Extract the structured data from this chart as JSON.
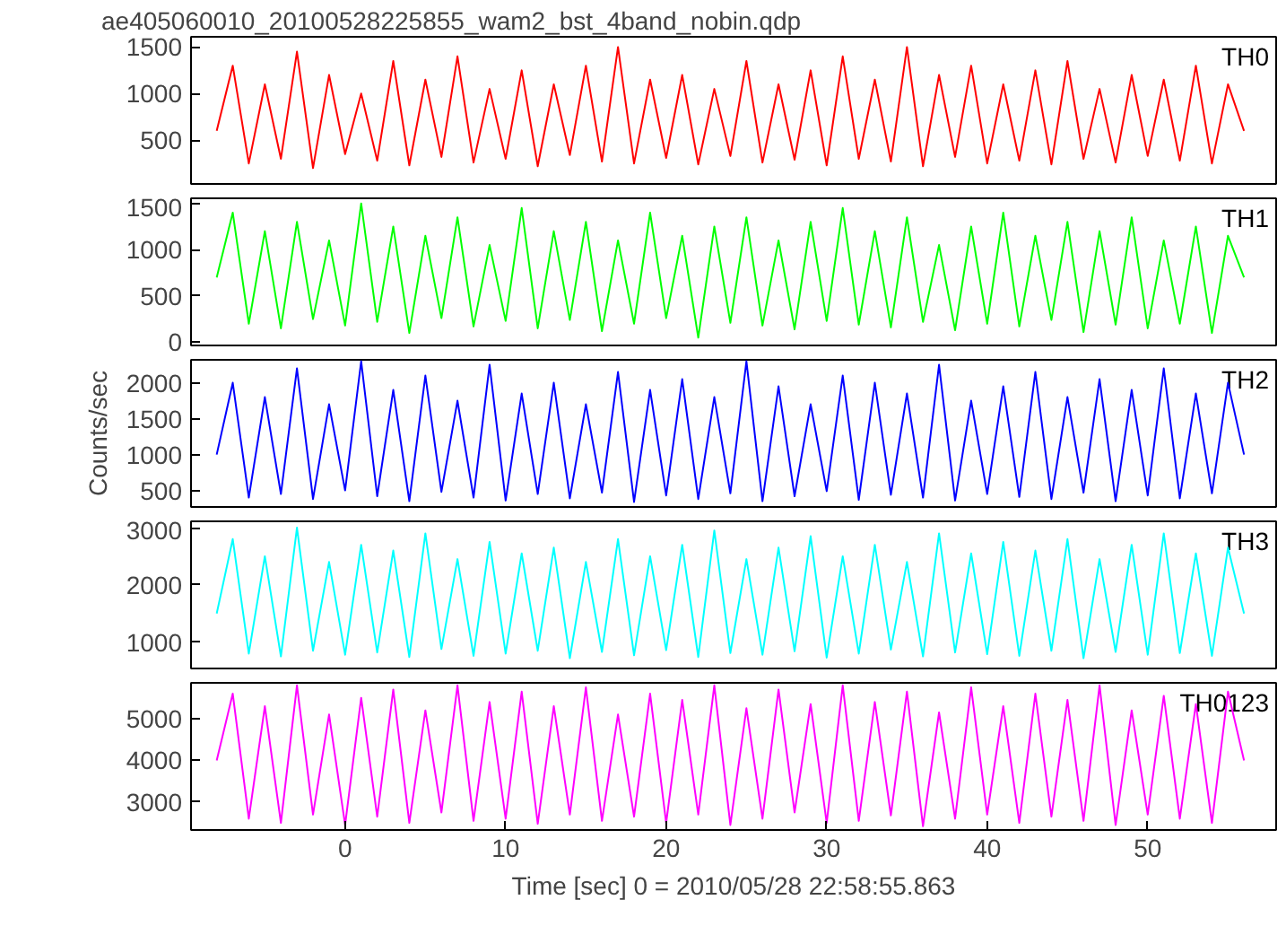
{
  "chart_data": [
    {
      "type": "line",
      "title": "ae405060010_20100528225855_wam2_bst_4band_nobin.qdp",
      "x": [
        -8,
        -7,
        -6,
        -5,
        -4,
        -3,
        -2,
        -1,
        0,
        1,
        2,
        3,
        4,
        5,
        6,
        7,
        8,
        9,
        10,
        11,
        12,
        13,
        14,
        15,
        16,
        17,
        18,
        19,
        20,
        21,
        22,
        23,
        24,
        25,
        26,
        27,
        28,
        29,
        30,
        31,
        32,
        33,
        34,
        35,
        36,
        37,
        38,
        39,
        40,
        41,
        42,
        43,
        44,
        45,
        46,
        47,
        48,
        49,
        50,
        51,
        52,
        53,
        54,
        55,
        56
      ],
      "xlim": [
        -9.6,
        58
      ],
      "xticks": [
        0,
        10,
        20,
        30,
        40,
        50
      ],
      "ylim": [
        30,
        1610
      ],
      "yticks": [
        500,
        1000,
        1500
      ],
      "tick_labels": "y",
      "series": [
        {
          "name": "TH0",
          "color": "#ff0000",
          "values": [
            600,
            1300,
            250,
            1100,
            300,
            1450,
            200,
            1200,
            350,
            1000,
            280,
            1350,
            230,
            1150,
            320,
            1400,
            260,
            1050,
            300,
            1250,
            220,
            1100,
            340,
            1300,
            270,
            1500,
            250,
            1150,
            310,
            1200,
            240,
            1050,
            330,
            1350,
            260,
            1100,
            290,
            1250,
            230,
            1400,
            300,
            1150,
            270,
            1500,
            220,
            1200,
            320,
            1300,
            250,
            1100,
            280,
            1250,
            240,
            1350,
            300,
            1050,
            260,
            1200,
            330,
            1150,
            280,
            1300,
            250,
            1100,
            600
          ]
        }
      ]
    },
    {
      "type": "line",
      "x": [
        -8,
        -7,
        -6,
        -5,
        -4,
        -3,
        -2,
        -1,
        0,
        1,
        2,
        3,
        4,
        5,
        6,
        7,
        8,
        9,
        10,
        11,
        12,
        13,
        14,
        15,
        16,
        17,
        18,
        19,
        20,
        21,
        22,
        23,
        24,
        25,
        26,
        27,
        28,
        29,
        30,
        31,
        32,
        33,
        34,
        35,
        36,
        37,
        38,
        39,
        40,
        41,
        42,
        43,
        44,
        45,
        46,
        47,
        48,
        49,
        50,
        51,
        52,
        53,
        54,
        55,
        56
      ],
      "xlim": [
        -9.6,
        58
      ],
      "xticks": [
        0,
        10,
        20,
        30,
        40,
        50
      ],
      "ylim": [
        -35,
        1555
      ],
      "yticks": [
        0,
        500,
        1000,
        1500
      ],
      "tick_labels": "y",
      "series": [
        {
          "name": "TH1",
          "color": "#00ff00",
          "values": [
            700,
            1400,
            200,
            1200,
            150,
            1300,
            250,
            1100,
            180,
            1500,
            220,
            1250,
            100,
            1150,
            260,
            1350,
            170,
            1050,
            230,
            1450,
            150,
            1200,
            240,
            1300,
            120,
            1100,
            200,
            1400,
            260,
            1150,
            50,
            1250,
            210,
            1350,
            180,
            1100,
            140,
            1300,
            230,
            1450,
            190,
            1200,
            160,
            1350,
            220,
            1050,
            130,
            1250,
            200,
            1400,
            170,
            1150,
            240,
            1300,
            110,
            1200,
            190,
            1350,
            150,
            1100,
            200,
            1250,
            100,
            1150,
            700
          ]
        }
      ]
    },
    {
      "type": "line",
      "ylabel": "Counts/sec",
      "x": [
        -8,
        -7,
        -6,
        -5,
        -4,
        -3,
        -2,
        -1,
        0,
        1,
        2,
        3,
        4,
        5,
        6,
        7,
        8,
        9,
        10,
        11,
        12,
        13,
        14,
        15,
        16,
        17,
        18,
        19,
        20,
        21,
        22,
        23,
        24,
        25,
        26,
        27,
        28,
        29,
        30,
        31,
        32,
        33,
        34,
        35,
        36,
        37,
        38,
        39,
        40,
        41,
        42,
        43,
        44,
        45,
        46,
        47,
        48,
        49,
        50,
        51,
        52,
        53,
        54,
        55,
        56
      ],
      "xlim": [
        -9.6,
        58
      ],
      "xticks": [
        0,
        10,
        20,
        30,
        40,
        50
      ],
      "ylim": [
        270,
        2320
      ],
      "yticks": [
        500,
        1000,
        1500,
        2000
      ],
      "tick_labels": "y",
      "series": [
        {
          "name": "TH2",
          "color": "#0000ff",
          "values": [
            1000,
            2000,
            400,
            1800,
            450,
            2200,
            380,
            1700,
            500,
            2300,
            420,
            1900,
            350,
            2100,
            480,
            1750,
            400,
            2250,
            360,
            1850,
            450,
            2000,
            390,
            1700,
            470,
            2150,
            340,
            1900,
            430,
            2050,
            380,
            1800,
            460,
            2300,
            350,
            1950,
            420,
            1700,
            490,
            2100,
            370,
            2000,
            440,
            1850,
            400,
            2250,
            360,
            1750,
            450,
            1950,
            410,
            2150,
            380,
            1800,
            470,
            2050,
            350,
            1900,
            430,
            2200,
            390,
            1850,
            460,
            2000,
            1000
          ]
        }
      ]
    },
    {
      "type": "line",
      "x": [
        -8,
        -7,
        -6,
        -5,
        -4,
        -3,
        -2,
        -1,
        0,
        1,
        2,
        3,
        4,
        5,
        6,
        7,
        8,
        9,
        10,
        11,
        12,
        13,
        14,
        15,
        16,
        17,
        18,
        19,
        20,
        21,
        22,
        23,
        24,
        25,
        26,
        27,
        28,
        29,
        30,
        31,
        32,
        33,
        34,
        35,
        36,
        37,
        38,
        39,
        40,
        41,
        42,
        43,
        44,
        45,
        46,
        47,
        48,
        49,
        50,
        51,
        52,
        53,
        54,
        55,
        56
      ],
      "xlim": [
        -9.6,
        58
      ],
      "xticks": [
        0,
        10,
        20,
        30,
        40,
        50
      ],
      "ylim": [
        540,
        3110
      ],
      "yticks": [
        1000,
        2000,
        3000
      ],
      "tick_labels": "y",
      "series": [
        {
          "name": "TH3",
          "color": "#00ffff",
          "values": [
            1500,
            2800,
            800,
            2500,
            750,
            3000,
            850,
            2400,
            780,
            2700,
            820,
            2600,
            740,
            2900,
            880,
            2450,
            760,
            2750,
            800,
            2550,
            850,
            2650,
            720,
            2400,
            830,
            2800,
            770,
            2500,
            860,
            2700,
            740,
            2950,
            810,
            2450,
            780,
            2650,
            840,
            2850,
            730,
            2500,
            800,
            2700,
            870,
            2400,
            750,
            2900,
            820,
            2550,
            790,
            2750,
            760,
            2600,
            850,
            2800,
            720,
            2450,
            830,
            2700,
            780,
            2900,
            810,
            2550,
            760,
            2650,
            1500
          ]
        }
      ]
    },
    {
      "type": "line",
      "xlabel": "Time [sec] 0 = 2010/05/28 22:58:55.863",
      "x": [
        -8,
        -7,
        -6,
        -5,
        -4,
        -3,
        -2,
        -1,
        0,
        1,
        2,
        3,
        4,
        5,
        6,
        7,
        8,
        9,
        10,
        11,
        12,
        13,
        14,
        15,
        16,
        17,
        18,
        19,
        20,
        21,
        22,
        23,
        24,
        25,
        26,
        27,
        28,
        29,
        30,
        31,
        32,
        33,
        34,
        35,
        36,
        37,
        38,
        39,
        40,
        41,
        42,
        43,
        44,
        45,
        46,
        47,
        48,
        49,
        50,
        51,
        52,
        53,
        54,
        55,
        56
      ],
      "xlim": [
        -9.6,
        58
      ],
      "xticks": [
        0,
        10,
        20,
        30,
        40,
        50
      ],
      "ylim": [
        2330,
        5860
      ],
      "yticks": [
        3000,
        4000,
        5000
      ],
      "series": [
        {
          "name": "TH0123",
          "color": "#ff00ff",
          "values": [
            4000,
            5600,
            2600,
            5300,
            2500,
            5800,
            2700,
            5100,
            2450,
            5500,
            2650,
            5700,
            2500,
            5200,
            2750,
            5800,
            2550,
            5400,
            2600,
            5650,
            2480,
            5300,
            2700,
            5750,
            2550,
            5100,
            2650,
            5600,
            2500,
            5450,
            2700,
            5800,
            2450,
            5250,
            2600,
            5700,
            2750,
            5350,
            2500,
            5800,
            2550,
            5400,
            2680,
            5650,
            2420,
            5150,
            2600,
            5750,
            2700,
            5300,
            2500,
            5600,
            2650,
            5450,
            2550,
            5800,
            2450,
            5200,
            2700,
            5550,
            2600,
            5350,
            2500,
            5650,
            4000
          ]
        }
      ]
    }
  ]
}
